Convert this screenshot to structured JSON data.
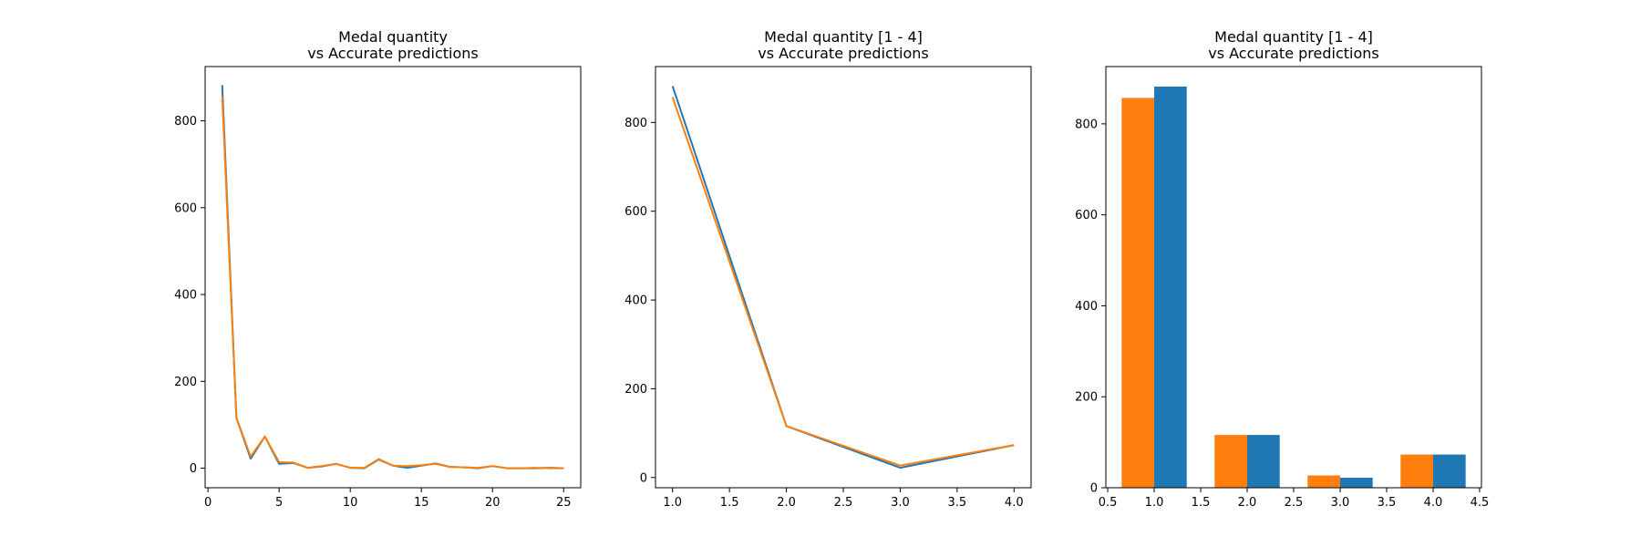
{
  "chart_data": [
    {
      "type": "line",
      "title": [
        "Medal quantity",
        "vs Accurate predictions"
      ],
      "xlabel": "",
      "ylabel": "",
      "xlim": [
        -0.2,
        26.2
      ],
      "ylim": [
        -45,
        925
      ],
      "xticks": [
        0,
        5,
        10,
        15,
        20,
        25
      ],
      "yticks": [
        0,
        200,
        400,
        600,
        800
      ],
      "grid": false,
      "series": [
        {
          "color": "#1f77b4",
          "x": [
            1,
            2,
            3,
            4,
            5,
            6,
            7,
            8,
            9,
            10,
            11,
            12,
            13,
            14,
            15,
            16,
            17,
            18,
            19,
            20,
            21,
            22,
            23,
            24,
            25
          ],
          "y": [
            882,
            116,
            22,
            73,
            10,
            12,
            1,
            4,
            10,
            1,
            0,
            20,
            6,
            1,
            6,
            11,
            3,
            2,
            0,
            5,
            0,
            0,
            0,
            1,
            0
          ]
        },
        {
          "color": "#ff7f0e",
          "x": [
            1,
            2,
            3,
            4,
            5,
            6,
            7,
            8,
            9,
            10,
            11,
            12,
            13,
            14,
            15,
            16,
            17,
            18,
            19,
            20,
            21,
            22,
            23,
            24,
            25
          ],
          "y": [
            857,
            116,
            27,
            73,
            14,
            13,
            1,
            5,
            10,
            1,
            1,
            21,
            6,
            5,
            7,
            10,
            3,
            2,
            1,
            5,
            0,
            0,
            1,
            0,
            0
          ]
        }
      ]
    },
    {
      "type": "line",
      "title": [
        "Medal quantity [1 - 4]",
        "vs Accurate predictions"
      ],
      "xlabel": "",
      "ylabel": "",
      "xlim": [
        0.85,
        4.15
      ],
      "ylim": [
        -23,
        926
      ],
      "xticks": [
        "1.0",
        "1.5",
        "2.0",
        "2.5",
        "3.0",
        "3.5",
        "4.0"
      ],
      "yticks": [
        0,
        200,
        400,
        600,
        800
      ],
      "grid": false,
      "series": [
        {
          "color": "#1f77b4",
          "x": [
            1,
            2,
            3,
            4
          ],
          "y": [
            882,
            116,
            22,
            73
          ]
        },
        {
          "color": "#ff7f0e",
          "x": [
            1,
            2,
            3,
            4
          ],
          "y": [
            857,
            116,
            27,
            73
          ]
        }
      ]
    },
    {
      "type": "bar",
      "title": [
        "Medal quantity [1 - 4]",
        "vs Accurate predictions"
      ],
      "xlabel": "",
      "ylabel": "",
      "xlim": [
        0.48,
        4.52
      ],
      "ylim": [
        0,
        926
      ],
      "xticks": [
        "0.5",
        "1.0",
        "1.5",
        "2.0",
        "2.5",
        "3.0",
        "3.5",
        "4.0",
        "4.5"
      ],
      "yticks": [
        0,
        200,
        400,
        600,
        800
      ],
      "bar_width": 0.35,
      "grid": false,
      "categories": [
        1,
        2,
        3,
        4
      ],
      "series": [
        {
          "color": "#ff7f0e",
          "offset": -0.175,
          "values": [
            857,
            116,
            27,
            73
          ]
        },
        {
          "color": "#1f77b4",
          "offset": 0.175,
          "values": [
            882,
            116,
            22,
            73
          ]
        }
      ]
    }
  ]
}
